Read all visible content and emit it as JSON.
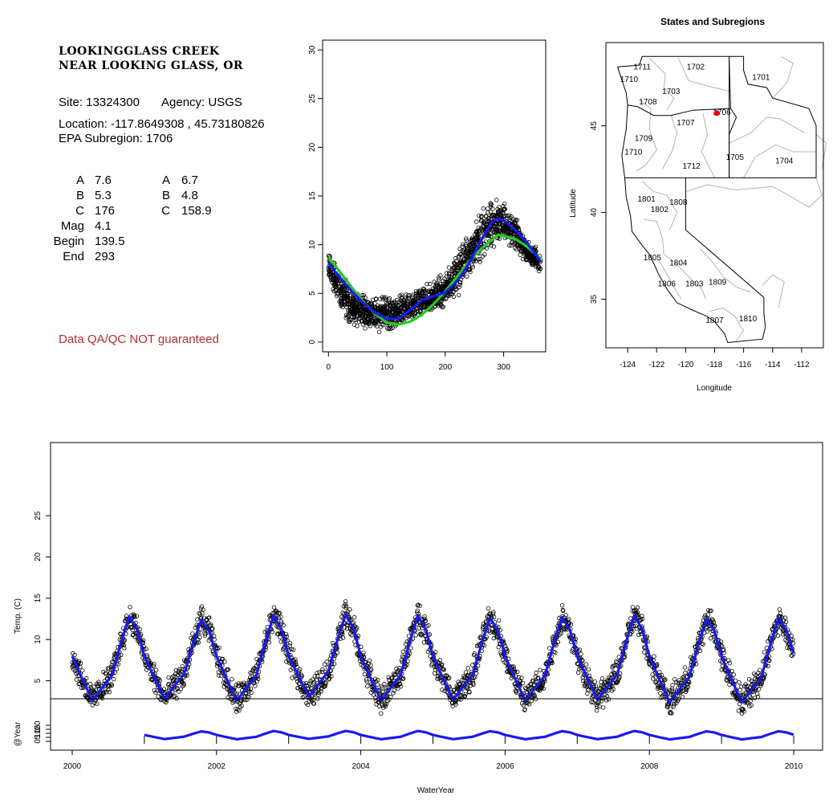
{
  "site": {
    "name_line1": "LOOKINGGLASS CREEK",
    "name_line2": "NEAR LOOKING GLASS, OR",
    "site_label": "Site: 13324300",
    "agency_label": "Agency: USGS",
    "location_label": "Location: -117.8649308 , 45.73180826",
    "subregion_label": "EPA Subregion: 1706",
    "qa_note": "Data QA/QC NOT guaranteed"
  },
  "params_left": [
    {
      "name": "A",
      "value": "7.6"
    },
    {
      "name": "B",
      "value": "5.3"
    },
    {
      "name": "C",
      "value": "176"
    },
    {
      "name": "Mag",
      "value": "4.1"
    },
    {
      "name": "Begin",
      "value": "139.5"
    },
    {
      "name": "End",
      "value": "293"
    }
  ],
  "params_right": [
    {
      "name": "A",
      "value": "6.7"
    },
    {
      "name": "B",
      "value": "4.8"
    },
    {
      "name": "C",
      "value": "158.9"
    }
  ],
  "colors": {
    "points": "#000000",
    "fit_blue": "#1a1aee",
    "fit_green": "#22cc22",
    "state_border": "#000000",
    "subregion_border": "#b4b4b4",
    "site_marker": "#ee0000"
  },
  "chart_data": [
    {
      "type": "scatter",
      "id": "annual-cycle",
      "title": "",
      "xlabel": "",
      "ylabel": "",
      "xlim": [
        -10,
        372
      ],
      "ylim": [
        -1,
        31
      ],
      "xticks": [
        0,
        100,
        200,
        300
      ],
      "yticks": [
        0,
        5,
        10,
        15,
        20,
        25,
        30
      ],
      "grid": false,
      "series": [
        {
          "kind": "points",
          "description_values": "daily temperature by day of water year, envelope",
          "x": [
            0,
            20,
            40,
            60,
            80,
            100,
            120,
            140,
            160,
            180,
            200,
            220,
            240,
            260,
            280,
            300,
            320,
            340,
            364
          ],
          "y_low": [
            6.2,
            2.4,
            1.2,
            0.8,
            0.6,
            0.6,
            1.0,
            1.6,
            2.4,
            2.6,
            3.5,
            4.2,
            6.0,
            7.5,
            9.0,
            10.2,
            9.0,
            7.5,
            6.5
          ],
          "y_high": [
            10.0,
            8.0,
            6.0,
            5.4,
            5.0,
            5.2,
            5.3,
            5.5,
            6.0,
            6.5,
            7.5,
            9.5,
            12.0,
            14.0,
            15.6,
            14.8,
            13.5,
            11.0,
            9.5
          ]
        },
        {
          "kind": "line",
          "color": "fit_blue",
          "x": [
            0,
            20,
            40,
            60,
            80,
            100,
            120,
            140,
            160,
            180,
            200,
            220,
            240,
            260,
            280,
            290,
            300,
            320,
            340,
            364
          ],
          "y": [
            8.1,
            6.6,
            5.2,
            4.0,
            3.0,
            2.4,
            2.4,
            3.3,
            4.3,
            4.7,
            5.1,
            6.2,
            8.0,
            10.3,
            12.3,
            12.7,
            12.5,
            11.5,
            10.2,
            8.2
          ]
        },
        {
          "kind": "line",
          "color": "fit_green",
          "x": [
            0,
            20,
            40,
            60,
            80,
            100,
            120,
            140,
            160,
            180,
            200,
            220,
            240,
            260,
            280,
            290,
            300,
            320,
            340,
            364
          ],
          "y": [
            8.7,
            7.2,
            5.6,
            4.1,
            2.9,
            2.0,
            1.8,
            2.1,
            2.8,
            3.9,
            5.2,
            6.7,
            8.2,
            9.5,
            10.5,
            11.0,
            10.9,
            10.6,
            9.8,
            8.5
          ]
        }
      ]
    },
    {
      "type": "map",
      "id": "region-map",
      "title": "States and Subregions",
      "xlabel": "Longitude",
      "ylabel": "Latitude",
      "xlim": [
        -125.5,
        -110.5
      ],
      "ylim": [
        32.2,
        49.8
      ],
      "xticks": [
        -124,
        -122,
        -120,
        -118,
        -116,
        -114,
        -112
      ],
      "yticks": [
        35,
        40,
        45
      ],
      "site": {
        "lon": -117.86,
        "lat": 45.73
      },
      "subregion_labels": [
        {
          "text": "1711",
          "lon": -123.0,
          "lat": 48.4
        },
        {
          "text": "1702",
          "lon": -119.3,
          "lat": 48.4
        },
        {
          "text": "1701",
          "lon": -114.8,
          "lat": 47.8
        },
        {
          "text": "1710",
          "lon": -123.9,
          "lat": 47.7
        },
        {
          "text": "1703",
          "lon": -121.0,
          "lat": 47.0
        },
        {
          "text": "1708",
          "lon": -122.6,
          "lat": 46.4
        },
        {
          "text": "1706",
          "lon": -117.5,
          "lat": 45.8
        },
        {
          "text": "1707",
          "lon": -120.0,
          "lat": 45.2
        },
        {
          "text": "1709",
          "lon": -122.9,
          "lat": 44.3
        },
        {
          "text": "1710",
          "lon": -123.6,
          "lat": 43.5
        },
        {
          "text": "1705",
          "lon": -116.6,
          "lat": 43.2
        },
        {
          "text": "1704",
          "lon": -113.2,
          "lat": 43.0
        },
        {
          "text": "1712",
          "lon": -119.6,
          "lat": 42.7
        },
        {
          "text": "1801",
          "lon": -122.7,
          "lat": 40.8
        },
        {
          "text": "1802",
          "lon": -121.8,
          "lat": 40.2
        },
        {
          "text": "1808",
          "lon": -120.5,
          "lat": 40.6
        },
        {
          "text": "1805",
          "lon": -122.3,
          "lat": 37.4
        },
        {
          "text": "1804",
          "lon": -120.5,
          "lat": 37.1
        },
        {
          "text": "1806",
          "lon": -121.3,
          "lat": 35.9
        },
        {
          "text": "1803",
          "lon": -119.4,
          "lat": 35.9
        },
        {
          "text": "1809",
          "lon": -117.8,
          "lat": 36.0
        },
        {
          "text": "1807",
          "lon": -118.0,
          "lat": 33.8
        },
        {
          "text": "1810",
          "lon": -115.7,
          "lat": 33.9
        }
      ]
    },
    {
      "type": "line",
      "id": "time-series",
      "title": "",
      "xlabel": "WaterYear",
      "ylabel": "Temp. (C)",
      "xlim": [
        1999.7,
        2010.4
      ],
      "ylim": [
        0,
        30
      ],
      "xticks": [
        2000,
        2002,
        2004,
        2006,
        2008,
        2010
      ],
      "yticks": [
        5,
        10,
        15,
        20,
        25
      ],
      "year_peaks": [
        {
          "year": 2000,
          "start": 8.0,
          "min": 2.6,
          "peak": 12.8
        },
        {
          "year": 2001,
          "min": 2.8,
          "peak": 12.4
        },
        {
          "year": 2002,
          "min": 2.6,
          "peak": 12.9
        },
        {
          "year": 2003,
          "min": 3.1,
          "peak": 13.0
        },
        {
          "year": 2004,
          "min": 2.6,
          "peak": 12.9
        },
        {
          "year": 2005,
          "min": 2.7,
          "peak": 12.6
        },
        {
          "year": 2006,
          "min": 2.6,
          "peak": 12.7
        },
        {
          "year": 2007,
          "min": 2.7,
          "peak": 12.9
        },
        {
          "year": 2008,
          "min": 2.4,
          "peak": 12.5
        },
        {
          "year": 2009,
          "min": 2.4,
          "peak": 12.6,
          "end": 8.3
        }
      ],
      "sub_panel": {
        "ylabel": "@Year",
        "yticks": [
          0,
          5,
          10,
          15,
          20
        ],
        "ylim": [
          -2,
          24
        ],
        "xstart": 2001
      }
    }
  ]
}
